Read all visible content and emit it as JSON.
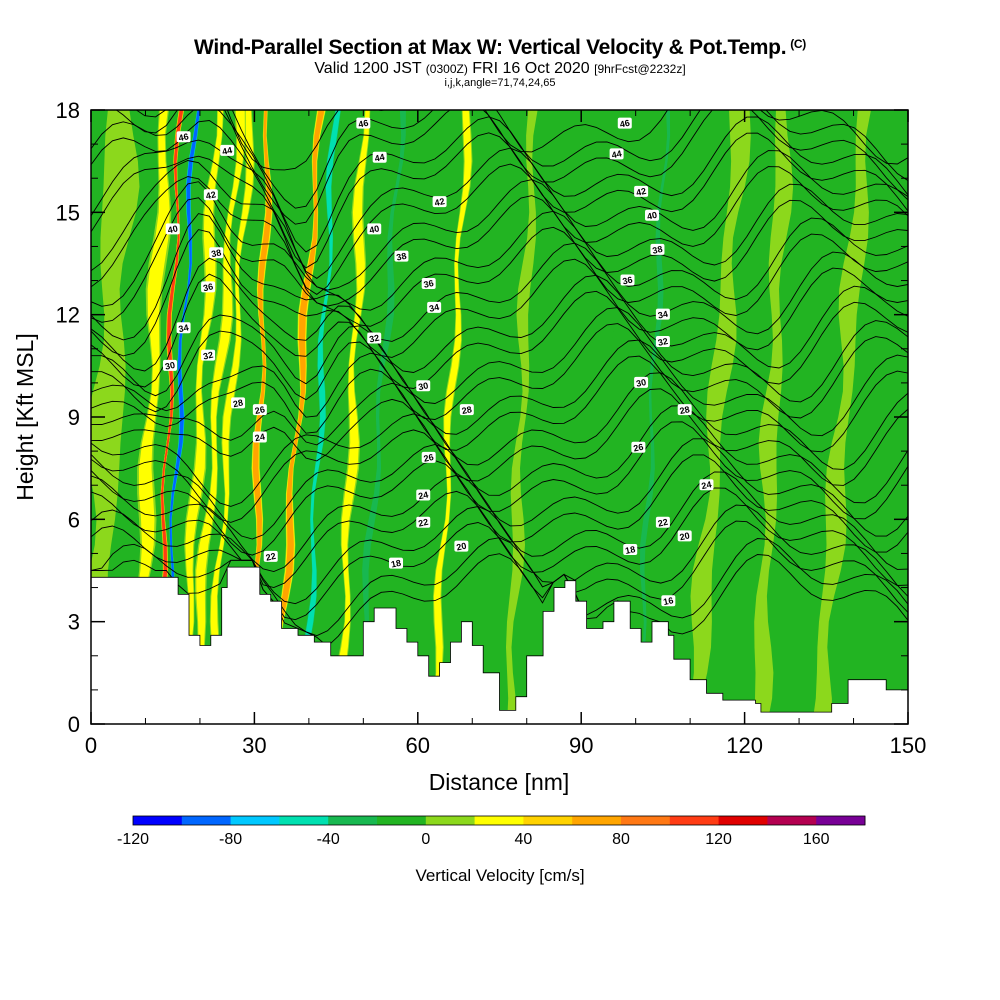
{
  "chart_data": {
    "type": "heatmap",
    "title": "Wind-Parallel Section at Max W: Vertical Velocity & Pot.Temp.",
    "title_mark": "(C)",
    "subtitle_main": "Valid 1200 JST",
    "subtitle_utc": "(0300Z)",
    "subtitle_date": "FRI 16 Oct 2020",
    "subtitle_fcst": "[9hrFcst@2232z]",
    "subtitle2": "i,j,k,angle=71,74,24,65",
    "xlabel": "Distance [nm]",
    "ylabel": "Height [Kft MSL]",
    "xlim": [
      0,
      150
    ],
    "ylim": [
      0,
      18
    ],
    "x_ticks": [
      0,
      30,
      60,
      90,
      120,
      150
    ],
    "y_ticks": [
      0,
      3,
      6,
      9,
      12,
      15,
      18
    ],
    "x_tick_labels": [
      "0",
      "30",
      "60",
      "90",
      "120",
      "150"
    ],
    "y_tick_labels": [
      "0",
      "3",
      "6",
      "9",
      "12",
      "15",
      "18"
    ],
    "colorbar": {
      "label": "Vertical Velocity [cm/s]",
      "min": -120,
      "max": 180,
      "step": 20,
      "tick_values": [
        -120,
        -80,
        -40,
        0,
        40,
        80,
        120,
        160
      ],
      "tick_labels": [
        "-120",
        "-80",
        "-40",
        "0",
        "40",
        "80",
        "120",
        "160"
      ],
      "colors": [
        "#0000ff",
        "#0066ff",
        "#00c8ff",
        "#00e0b0",
        "#18b850",
        "#22b422",
        "#8cd81c",
        "#ffff00",
        "#ffd200",
        "#ffa500",
        "#ff7814",
        "#ff3c14",
        "#e00000",
        "#b40050",
        "#780096"
      ]
    },
    "terrain_kft": [
      [
        0,
        4.3
      ],
      [
        12,
        4.3
      ],
      [
        15,
        4.3
      ],
      [
        16,
        3.8
      ],
      [
        18,
        2.6
      ],
      [
        20,
        2.3
      ],
      [
        22,
        2.6
      ],
      [
        24,
        4.0
      ],
      [
        25,
        4.6
      ],
      [
        30,
        4.6
      ],
      [
        31,
        3.8
      ],
      [
        33,
        3.6
      ],
      [
        35,
        2.8
      ],
      [
        38,
        2.6
      ],
      [
        41,
        2.4
      ],
      [
        44,
        2.0
      ],
      [
        48,
        2.0
      ],
      [
        50,
        3.0
      ],
      [
        52,
        3.4
      ],
      [
        54,
        3.4
      ],
      [
        56,
        2.8
      ],
      [
        58,
        2.4
      ],
      [
        60,
        2.0
      ],
      [
        62,
        1.4
      ],
      [
        64,
        1.8
      ],
      [
        66,
        2.4
      ],
      [
        68,
        3.0
      ],
      [
        70,
        2.3
      ],
      [
        72,
        1.5
      ],
      [
        75,
        0.4
      ],
      [
        78,
        0.8
      ],
      [
        80,
        2.0
      ],
      [
        83,
        3.3
      ],
      [
        85,
        4.0
      ],
      [
        87,
        4.2
      ],
      [
        89,
        3.6
      ],
      [
        91,
        2.8
      ],
      [
        94,
        3.0
      ],
      [
        96,
        3.6
      ],
      [
        99,
        2.8
      ],
      [
        101,
        2.4
      ],
      [
        103,
        3.0
      ],
      [
        106,
        2.6
      ],
      [
        107,
        1.9
      ],
      [
        110,
        1.3
      ],
      [
        113,
        0.9
      ],
      [
        116,
        0.7
      ],
      [
        119,
        0.7
      ],
      [
        122,
        0.6
      ],
      [
        123,
        0.35
      ],
      [
        128,
        0.35
      ],
      [
        132,
        0.35
      ],
      [
        136,
        0.6
      ],
      [
        139,
        1.3
      ],
      [
        143,
        1.3
      ],
      [
        146,
        1.0
      ],
      [
        150,
        1.0
      ]
    ],
    "w_columns": [
      {
        "x": 3,
        "w": 6,
        "v": 10
      },
      {
        "x": 11,
        "w": 3.0,
        "v": 45
      },
      {
        "x": 14.2,
        "w": 0.9,
        "v": 120
      },
      {
        "x": 16.2,
        "w": 1.0,
        "v": -90
      },
      {
        "x": 20,
        "w": 2.2,
        "v": 45
      },
      {
        "x": 23,
        "w": 2.0,
        "v": 45
      },
      {
        "x": 25.5,
        "w": 1.5,
        "v": 45
      },
      {
        "x": 31,
        "w": 1.4,
        "v": 75
      },
      {
        "x": 38,
        "w": 1.6,
        "v": 80
      },
      {
        "x": 42,
        "w": 1.4,
        "v": -60
      },
      {
        "x": 48,
        "w": 2.0,
        "v": 40
      },
      {
        "x": 53,
        "w": 1.5,
        "v": -30
      },
      {
        "x": 66,
        "w": 1.5,
        "v": 40
      },
      {
        "x": 71,
        "w": 2.0,
        "v": -10
      },
      {
        "x": 79,
        "w": 2.0,
        "v": 10
      },
      {
        "x": 88,
        "w": 1.5,
        "v": -15
      },
      {
        "x": 96,
        "w": 2.5,
        "v": -10
      },
      {
        "x": 103,
        "w": 1.2,
        "v": -45
      },
      {
        "x": 115,
        "w": 3.5,
        "v": 15
      },
      {
        "x": 125,
        "w": 3.0,
        "v": 15
      },
      {
        "x": 138,
        "w": 3.5,
        "v": 15
      }
    ],
    "theta_levels": [
      16,
      18,
      20,
      22,
      24,
      26,
      28,
      30,
      32,
      34,
      36,
      38,
      40,
      42,
      44,
      46
    ],
    "contour_labels": [
      {
        "text": "46",
        "x": 17,
        "y": 17.2
      },
      {
        "text": "44",
        "x": 25,
        "y": 16.8
      },
      {
        "text": "42",
        "x": 22,
        "y": 15.5
      },
      {
        "text": "40",
        "x": 15,
        "y": 14.5
      },
      {
        "text": "38",
        "x": 23,
        "y": 13.8
      },
      {
        "text": "36",
        "x": 21.5,
        "y": 12.8
      },
      {
        "text": "34",
        "x": 17,
        "y": 11.6
      },
      {
        "text": "32",
        "x": 21.5,
        "y": 10.8
      },
      {
        "text": "30",
        "x": 14.5,
        "y": 10.5
      },
      {
        "text": "28",
        "x": 27,
        "y": 9.4
      },
      {
        "text": "26",
        "x": 31,
        "y": 9.2
      },
      {
        "text": "24",
        "x": 31,
        "y": 8.4
      },
      {
        "text": "22",
        "x": 33,
        "y": 4.9
      },
      {
        "text": "46",
        "x": 50,
        "y": 17.6
      },
      {
        "text": "44",
        "x": 53,
        "y": 16.6
      },
      {
        "text": "42",
        "x": 64,
        "y": 15.3
      },
      {
        "text": "40",
        "x": 52,
        "y": 14.5
      },
      {
        "text": "38",
        "x": 57,
        "y": 13.7
      },
      {
        "text": "36",
        "x": 62,
        "y": 12.9
      },
      {
        "text": "34",
        "x": 63,
        "y": 12.2
      },
      {
        "text": "32",
        "x": 52,
        "y": 11.3
      },
      {
        "text": "30",
        "x": 61,
        "y": 9.9
      },
      {
        "text": "28",
        "x": 69,
        "y": 9.2
      },
      {
        "text": "26",
        "x": 62,
        "y": 7.8
      },
      {
        "text": "24",
        "x": 61,
        "y": 6.7
      },
      {
        "text": "22",
        "x": 61,
        "y": 5.9
      },
      {
        "text": "20",
        "x": 68,
        "y": 5.2
      },
      {
        "text": "18",
        "x": 56,
        "y": 4.7
      },
      {
        "text": "46",
        "x": 98,
        "y": 17.6
      },
      {
        "text": "44",
        "x": 96.5,
        "y": 16.7
      },
      {
        "text": "42",
        "x": 101,
        "y": 15.6
      },
      {
        "text": "40",
        "x": 103,
        "y": 14.9
      },
      {
        "text": "38",
        "x": 104,
        "y": 13.9
      },
      {
        "text": "36",
        "x": 98.5,
        "y": 13.0
      },
      {
        "text": "34",
        "x": 105,
        "y": 12.0
      },
      {
        "text": "32",
        "x": 105,
        "y": 11.2
      },
      {
        "text": "30",
        "x": 101,
        "y": 10.0
      },
      {
        "text": "28",
        "x": 109,
        "y": 9.2
      },
      {
        "text": "26",
        "x": 100.5,
        "y": 8.1
      },
      {
        "text": "24",
        "x": 113,
        "y": 7.0
      },
      {
        "text": "22",
        "x": 105,
        "y": 5.9
      },
      {
        "text": "20",
        "x": 109,
        "y": 5.5
      },
      {
        "text": "18",
        "x": 99,
        "y": 5.1
      },
      {
        "text": "16",
        "x": 106,
        "y": 3.6
      }
    ]
  }
}
